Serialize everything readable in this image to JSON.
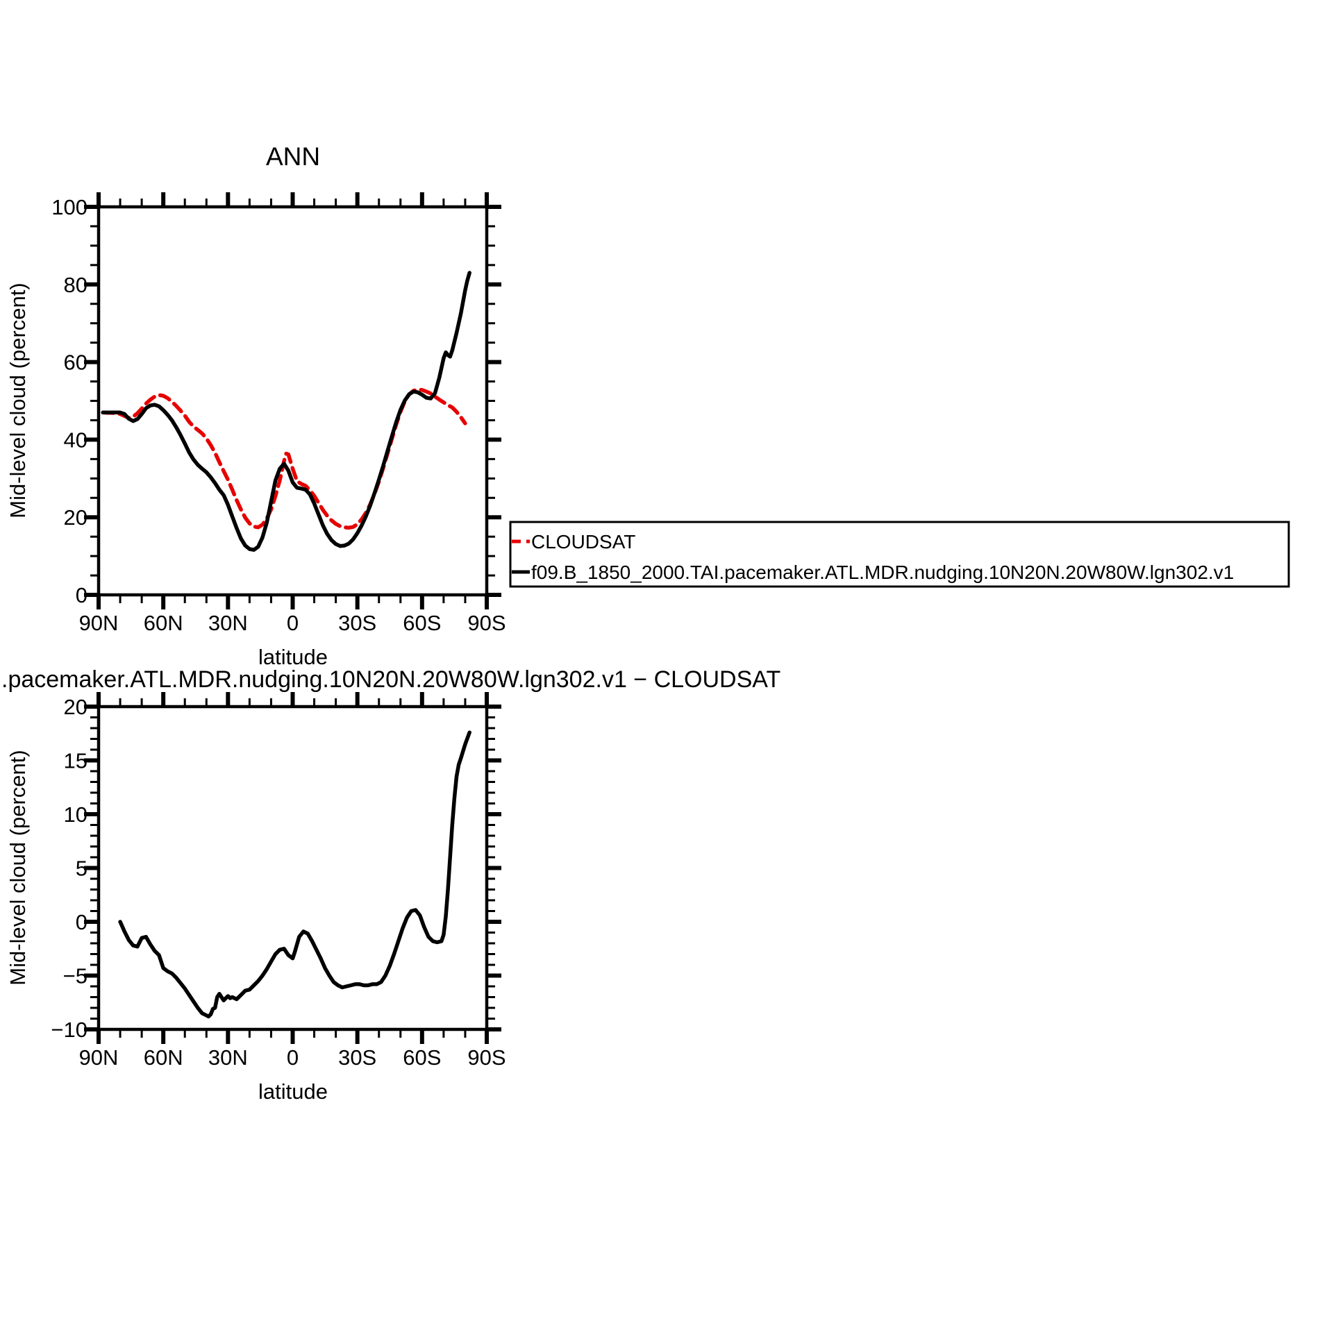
{
  "page": {
    "background": "#ffffff"
  },
  "colors": {
    "model": "#000000",
    "cloudsat": "#e60000",
    "axis": "#000000"
  },
  "chart_data": [
    {
      "type": "line",
      "title": "ANN",
      "xlabel": "latitude",
      "ylabel": "Mid-level cloud (percent)",
      "ylim": [
        0,
        100
      ],
      "xlim_degrees": [
        90,
        -90
      ],
      "grid": false,
      "x_ticks": [
        {
          "deg": 90,
          "label": "90N"
        },
        {
          "deg": 60,
          "label": "60N"
        },
        {
          "deg": 30,
          "label": "30N"
        },
        {
          "deg": 0,
          "label": "0"
        },
        {
          "deg": -30,
          "label": "30S"
        },
        {
          "deg": -60,
          "label": "60S"
        },
        {
          "deg": -90,
          "label": "90S"
        }
      ],
      "x_minor_step": 10,
      "y_ticks": [
        {
          "v": 0,
          "label": "0"
        },
        {
          "v": 20,
          "label": "20"
        },
        {
          "v": 40,
          "label": "40"
        },
        {
          "v": 60,
          "label": "60"
        },
        {
          "v": 80,
          "label": "80"
        },
        {
          "v": 100,
          "label": "100"
        }
      ],
      "y_minor_step": 5,
      "legend": {
        "position": "outside-right",
        "entries": [
          {
            "id": "cloudsat",
            "label": "CLOUDSAT",
            "style": "dashed",
            "color": "#e60000"
          },
          {
            "id": "model",
            "label": "f09.B_1850_2000.TAI.pacemaker.ATL.MDR.nudging.10N20N.20W80W.lgn302.v1",
            "style": "solid",
            "color": "#000000"
          }
        ]
      },
      "series": [
        {
          "id": "cloudsat",
          "name": "CLOUDSAT",
          "style": "dashed",
          "color": "#e60000",
          "lat": [
            88,
            86,
            84,
            82,
            80,
            78,
            76,
            74,
            72,
            70,
            68,
            66,
            64,
            62,
            60,
            58,
            56,
            54,
            52,
            50,
            48,
            46,
            44,
            42,
            40,
            38,
            36,
            34,
            32,
            30,
            28,
            26,
            24,
            22,
            20,
            18,
            16,
            14,
            12,
            10,
            8,
            6,
            4,
            3,
            2,
            0,
            -2,
            -4,
            -6,
            -8,
            -10,
            -12,
            -14,
            -16,
            -18,
            -20,
            -22,
            -24,
            -26,
            -28,
            -30,
            -32,
            -34,
            -36,
            -38,
            -40,
            -42,
            -44,
            -46,
            -48,
            -50,
            -52,
            -54,
            -56,
            -58,
            -60,
            -62,
            -64,
            -66,
            -68,
            -70,
            -72,
            -74,
            -76,
            -78,
            -80
          ],
          "values": [
            47.0,
            46.9,
            46.9,
            46.8,
            46.6,
            46.1,
            45.6,
            45.9,
            46.8,
            48.0,
            49.3,
            50.3,
            51.1,
            51.5,
            51.3,
            50.7,
            49.8,
            48.7,
            47.5,
            46.2,
            44.6,
            43.4,
            42.5,
            41.6,
            40.3,
            38.6,
            36.6,
            34.2,
            31.9,
            29.7,
            27.1,
            24.4,
            22.0,
            19.9,
            18.4,
            17.6,
            17.4,
            18.1,
            19.7,
            22.0,
            25.5,
            29.5,
            34.5,
            36.4,
            36.2,
            32.5,
            29.3,
            28.6,
            28.1,
            27.0,
            25.5,
            23.7,
            21.9,
            20.4,
            19.2,
            18.3,
            17.7,
            17.4,
            17.3,
            17.5,
            18.2,
            19.5,
            21.2,
            23.4,
            26.1,
            29.2,
            32.7,
            36.4,
            40.2,
            43.9,
            47.2,
            49.9,
            51.7,
            52.6,
            52.9,
            52.8,
            52.4,
            51.9,
            51.1,
            50.3,
            49.6,
            48.9,
            48.3,
            47.2,
            45.8,
            44.2
          ]
        },
        {
          "id": "model",
          "name": "f09.B_1850_2000.TAI.pacemaker.ATL.MDR.nudging.10N20N.20W80W.lgn302.v1",
          "style": "solid",
          "color": "#000000",
          "lat": [
            88,
            86,
            84,
            82,
            80,
            78,
            76,
            74,
            72,
            70,
            68,
            66,
            64,
            62,
            60,
            58,
            56,
            54,
            52,
            50,
            48,
            46,
            44,
            42,
            40,
            38,
            36,
            34,
            32,
            30,
            28,
            26,
            24,
            22,
            20,
            18,
            16,
            14,
            12,
            10,
            8,
            6,
            4,
            2,
            0,
            -2,
            -4,
            -6,
            -8,
            -10,
            -12,
            -14,
            -16,
            -18,
            -20,
            -22,
            -24,
            -26,
            -28,
            -30,
            -32,
            -34,
            -36,
            -38,
            -40,
            -42,
            -44,
            -46,
            -48,
            -50,
            -52,
            -54,
            -56,
            -58,
            -60,
            -62,
            -64,
            -66,
            -68,
            -70,
            -71,
            -72,
            -73,
            -74,
            -76,
            -78,
            -80,
            -81,
            -82
          ],
          "values": [
            47.0,
            47.0,
            47.0,
            47.0,
            47.0,
            46.6,
            45.4,
            44.8,
            45.3,
            46.6,
            48.1,
            48.8,
            49.0,
            48.6,
            47.6,
            46.4,
            45.0,
            43.2,
            41.2,
            39.0,
            36.7,
            34.9,
            33.5,
            32.5,
            31.6,
            30.3,
            28.8,
            27.1,
            25.7,
            23.2,
            20.2,
            17.2,
            14.5,
            12.7,
            11.8,
            11.6,
            12.4,
            14.8,
            18.6,
            24.0,
            29.5,
            32.5,
            33.8,
            32.0,
            29.0,
            27.6,
            27.4,
            27.1,
            25.9,
            23.5,
            20.7,
            17.9,
            15.7,
            14.1,
            13.1,
            12.6,
            12.7,
            13.2,
            14.3,
            15.9,
            17.9,
            20.3,
            23.1,
            26.3,
            29.7,
            33.3,
            37.1,
            40.9,
            44.5,
            47.7,
            50.1,
            51.7,
            52.4,
            52.2,
            51.6,
            50.8,
            50.6,
            52.0,
            56.0,
            61.0,
            62.5,
            61.8,
            61.4,
            63.0,
            67.5,
            72.5,
            78.5,
            81.0,
            83.0
          ]
        }
      ]
    },
    {
      "type": "line",
      "title": ".pacemaker.ATL.MDR.nudging.10N20N.20W80W.lgn302.v1 − CLOUDSAT",
      "xlabel": "latitude",
      "ylabel": "Mid-level cloud (percent)",
      "ylim": [
        -10,
        20
      ],
      "xlim_degrees": [
        90,
        -90
      ],
      "grid": false,
      "x_ticks": [
        {
          "deg": 90,
          "label": "90N"
        },
        {
          "deg": 60,
          "label": "60N"
        },
        {
          "deg": 30,
          "label": "30N"
        },
        {
          "deg": 0,
          "label": "0"
        },
        {
          "deg": -30,
          "label": "30S"
        },
        {
          "deg": -60,
          "label": "60S"
        },
        {
          "deg": -90,
          "label": "90S"
        }
      ],
      "x_minor_step": 10,
      "y_ticks": [
        {
          "v": -10,
          "label": "−10"
        },
        {
          "v": -5,
          "label": "−5"
        },
        {
          "v": 0,
          "label": "0"
        },
        {
          "v": 5,
          "label": "5"
        },
        {
          "v": 10,
          "label": "10"
        },
        {
          "v": 15,
          "label": "15"
        },
        {
          "v": 20,
          "label": "20"
        }
      ],
      "y_minor_step": 1,
      "series": [
        {
          "id": "difference",
          "name": "model minus CLOUDSAT",
          "style": "solid",
          "color": "#000000",
          "lat": [
            80,
            78,
            76,
            74,
            72,
            70,
            68,
            66,
            64,
            62,
            60,
            58,
            56,
            54,
            52,
            50,
            48,
            46,
            44,
            42,
            40,
            39,
            38,
            37,
            36,
            35,
            34,
            33,
            32,
            31,
            30,
            29,
            28,
            27,
            26,
            25,
            24,
            22,
            20,
            18,
            16,
            14,
            12,
            10,
            8,
            6,
            4,
            2,
            0,
            -1,
            -3,
            -5,
            -7,
            -9,
            -11,
            -13,
            -15,
            -17,
            -19,
            -21,
            -23,
            -25,
            -27,
            -29,
            -31,
            -33,
            -35,
            -37,
            -39,
            -41,
            -43,
            -45,
            -47,
            -49,
            -51,
            -53,
            -55,
            -57,
            -59,
            -61,
            -63,
            -65,
            -67,
            -69,
            -70,
            -71,
            -72,
            -73,
            -74,
            -75,
            -76,
            -77,
            -78,
            -80,
            -82
          ],
          "values": [
            0.0,
            -0.9,
            -1.7,
            -2.2,
            -2.3,
            -1.5,
            -1.4,
            -2.1,
            -2.7,
            -3.1,
            -4.3,
            -4.6,
            -4.8,
            -5.2,
            -5.7,
            -6.2,
            -6.8,
            -7.4,
            -8.0,
            -8.5,
            -8.7,
            -8.8,
            -8.6,
            -8.1,
            -8.0,
            -7.0,
            -6.7,
            -7.0,
            -7.3,
            -7.1,
            -6.9,
            -7.1,
            -7.0,
            -7.1,
            -7.2,
            -7.0,
            -6.8,
            -6.4,
            -6.3,
            -5.9,
            -5.5,
            -5.0,
            -4.4,
            -3.7,
            -3.0,
            -2.6,
            -2.5,
            -3.1,
            -3.4,
            -2.8,
            -1.4,
            -0.9,
            -1.1,
            -1.8,
            -2.6,
            -3.4,
            -4.3,
            -5.0,
            -5.6,
            -5.9,
            -6.1,
            -6.0,
            -5.9,
            -5.8,
            -5.8,
            -5.9,
            -5.9,
            -5.8,
            -5.8,
            -5.6,
            -5.0,
            -4.1,
            -3.0,
            -1.8,
            -0.6,
            0.4,
            1.0,
            1.1,
            0.6,
            -0.5,
            -1.4,
            -1.8,
            -1.9,
            -1.8,
            -1.2,
            0.5,
            3.0,
            6.0,
            9.0,
            11.5,
            13.5,
            14.6,
            15.2,
            16.5,
            17.6
          ]
        }
      ]
    }
  ]
}
